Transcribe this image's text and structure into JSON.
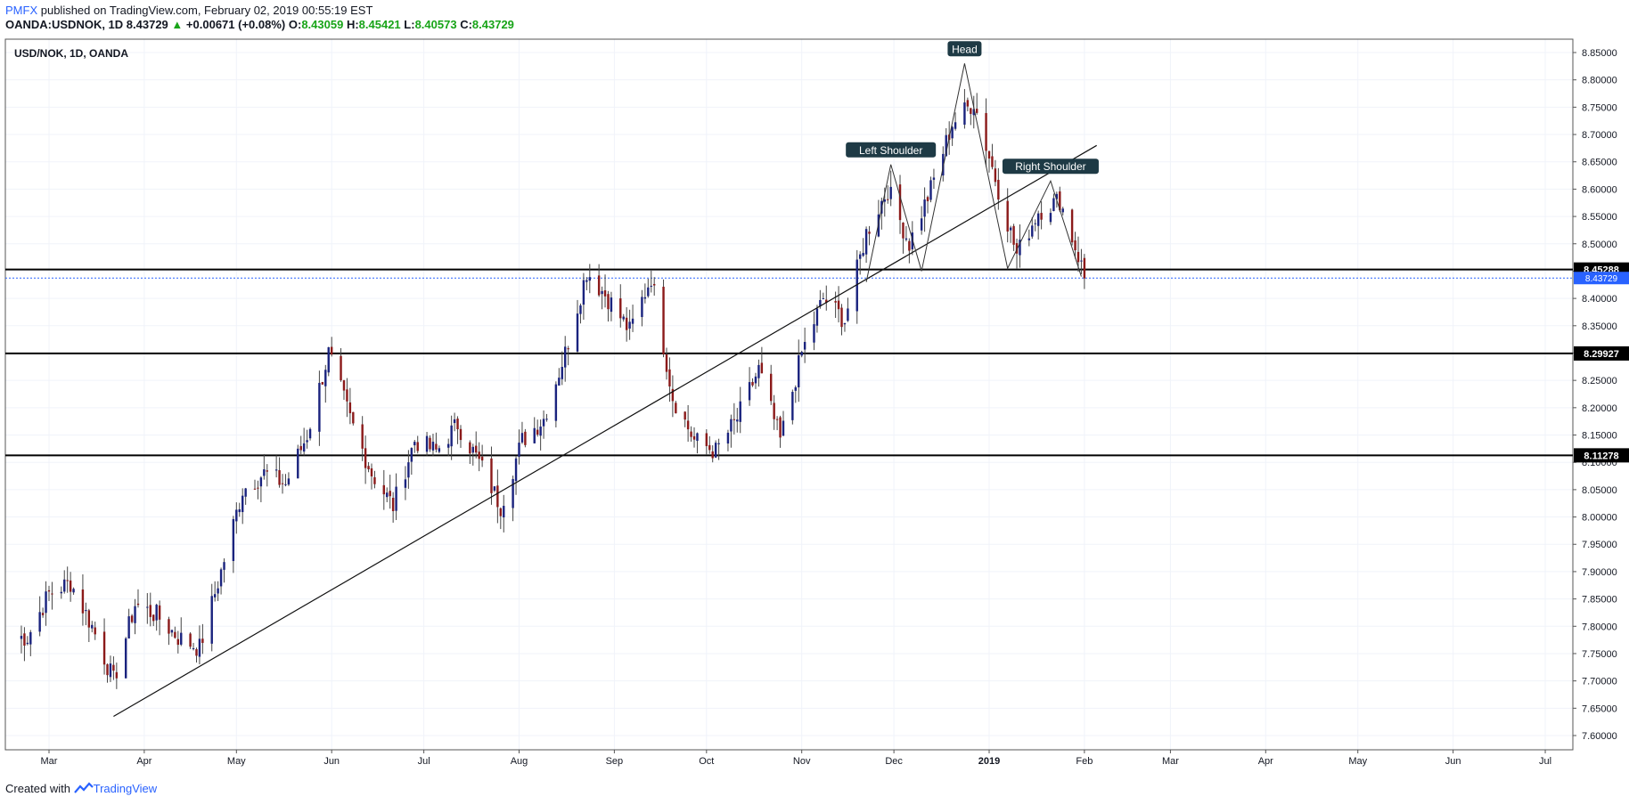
{
  "header": {
    "publisher": "PMFX",
    "published_text": " published on TradingView.com, February 02, 2019 00:55:19 EST",
    "symbol": "OANDA:USDNOK, 1D",
    "last": "8.43729",
    "change": "+0.00671 (+0.08%)",
    "o_label": "O:",
    "o": "8.43059",
    "h_label": "H:",
    "h": "8.45421",
    "l_label": "L:",
    "l": "8.40573",
    "c_label": "C:",
    "c": "8.43729"
  },
  "footer": {
    "created_with": "Created with",
    "brand": "TradingView"
  },
  "colors": {
    "bull": "#1a237e",
    "bear": "#8b1a1a",
    "wick": "#444444",
    "grid": "#f0f3fa",
    "label_bg": "#1e3a45",
    "price_line": "#2962ff"
  },
  "chart_data": {
    "type": "candlestick",
    "title": "USD/NOK, 1D, OANDA",
    "y_range": [
      7.58,
      8.87
    ],
    "y_ticks": [
      "7.60000",
      "7.65000",
      "7.70000",
      "7.75000",
      "7.80000",
      "7.85000",
      "7.90000",
      "7.95000",
      "8.00000",
      "8.05000",
      "8.10000",
      "8.15000",
      "8.20000",
      "8.25000",
      "8.30000",
      "8.35000",
      "8.40000",
      "8.45000",
      "8.50000",
      "8.55000",
      "8.60000",
      "8.65000",
      "8.70000",
      "8.75000",
      "8.80000",
      "8.85000"
    ],
    "x_ticks": [
      "Mar",
      "Apr",
      "May",
      "Jun",
      "Jul",
      "Aug",
      "Sep",
      "Oct",
      "Nov",
      "Dec",
      "2019",
      "Feb",
      "Mar",
      "Apr",
      "May",
      "Jun",
      "Jul"
    ],
    "horizontal_levels": [
      {
        "value": 8.45288,
        "label": "8.45288"
      },
      {
        "value": 8.29927,
        "label": "8.29927"
      },
      {
        "value": 8.11278,
        "label": "8.11278"
      }
    ],
    "last_price": {
      "value": 8.43729,
      "label": "8.43729"
    },
    "trendline": {
      "from": [
        "2018-03-22",
        7.635
      ],
      "to": [
        "2019-02-05",
        8.68
      ]
    },
    "pattern": {
      "name": "Head and Shoulders",
      "labels": [
        "Left Shoulder",
        "Head",
        "Right Shoulder"
      ],
      "points": [
        [
          8.42,
          8.645
        ],
        [
          8.45,
          8.83
        ],
        [
          8.45,
          8.615
        ],
        [
          8.44,
          null
        ]
      ]
    },
    "anchors": [
      [
        "2018-02-22",
        7.78
      ],
      [
        "2018-03-01",
        7.86
      ],
      [
        "2018-03-08",
        7.88
      ],
      [
        "2018-03-15",
        7.8
      ],
      [
        "2018-03-22",
        7.7
      ],
      [
        "2018-03-29",
        7.84
      ],
      [
        "2018-04-05",
        7.82
      ],
      [
        "2018-04-12",
        7.78
      ],
      [
        "2018-04-19",
        7.76
      ],
      [
        "2018-04-26",
        7.9
      ],
      [
        "2018-05-03",
        8.05
      ],
      [
        "2018-05-10",
        8.08
      ],
      [
        "2018-05-17",
        8.06
      ],
      [
        "2018-05-24",
        8.15
      ],
      [
        "2018-05-31",
        8.3
      ],
      [
        "2018-06-07",
        8.18
      ],
      [
        "2018-06-14",
        8.08
      ],
      [
        "2018-06-21",
        8.02
      ],
      [
        "2018-06-28",
        8.14
      ],
      [
        "2018-07-05",
        8.12
      ],
      [
        "2018-07-12",
        8.17
      ],
      [
        "2018-07-19",
        8.1
      ],
      [
        "2018-07-26",
        8.02
      ],
      [
        "2018-08-02",
        8.14
      ],
      [
        "2018-08-09",
        8.18
      ],
      [
        "2018-08-16",
        8.3
      ],
      [
        "2018-08-23",
        8.45
      ],
      [
        "2018-08-30",
        8.4
      ],
      [
        "2018-09-06",
        8.34
      ],
      [
        "2018-09-13",
        8.44
      ],
      [
        "2018-09-20",
        8.22
      ],
      [
        "2018-09-27",
        8.14
      ],
      [
        "2018-10-04",
        8.12
      ],
      [
        "2018-10-11",
        8.18
      ],
      [
        "2018-10-18",
        8.27
      ],
      [
        "2018-10-25",
        8.14
      ],
      [
        "2018-11-01",
        8.3
      ],
      [
        "2018-11-08",
        8.4
      ],
      [
        "2018-11-15",
        8.36
      ],
      [
        "2018-11-22",
        8.52
      ],
      [
        "2018-11-29",
        8.6
      ],
      [
        "2018-12-06",
        8.5
      ],
      [
        "2018-12-13",
        8.6
      ],
      [
        "2018-12-20",
        8.72
      ],
      [
        "2018-12-27",
        8.76
      ],
      [
        "2019-01-03",
        8.62
      ],
      [
        "2019-01-10",
        8.48
      ],
      [
        "2019-01-17",
        8.56
      ],
      [
        "2019-01-24",
        8.58
      ],
      [
        "2019-01-31",
        8.46
      ],
      [
        "2019-02-01",
        8.437
      ]
    ]
  }
}
